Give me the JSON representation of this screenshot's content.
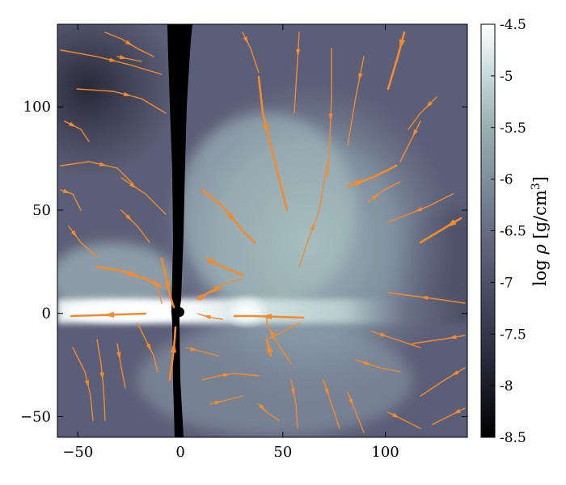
{
  "chart_data": {
    "type": "heatmap",
    "title": "",
    "xlabel": "",
    "ylabel": "",
    "xlim": [
      -60,
      140
    ],
    "ylim": [
      -60,
      140
    ],
    "xticks": [
      -50,
      0,
      50,
      100
    ],
    "yticks": [
      -50,
      0,
      50,
      100
    ],
    "colorbar": {
      "label": "log ρ [g/cm³]",
      "label_parts": [
        "log ",
        "ρ",
        " [g/cm",
        "3",
        "]"
      ],
      "range": [
        -8.5,
        -4.5
      ],
      "ticks": [
        "-4.5",
        "-5",
        "-5.5",
        "-6",
        "-6.5",
        "-7",
        "-7.5",
        "-8",
        "-8.5"
      ],
      "colormap": "bone"
    },
    "overlay": "velocity streamlines",
    "marker": {
      "x": 0,
      "y": 0,
      "color": "#000000"
    },
    "density_structures": [
      {
        "name": "disk midplane",
        "log_rho": -5.0
      },
      {
        "name": "dense clump",
        "x": 32,
        "y": 0,
        "log_rho": -4.6
      },
      {
        "name": "outflow lobe",
        "x": 60,
        "y": 60,
        "log_rho": -5.8
      },
      {
        "name": "polar funnel",
        "log_rho": -8.5
      },
      {
        "name": "ambient",
        "log_rho": -7.3
      }
    ]
  },
  "colors": {
    "streamline": "#f28a2e",
    "background": "#3c3e54",
    "marker": "#000000"
  }
}
